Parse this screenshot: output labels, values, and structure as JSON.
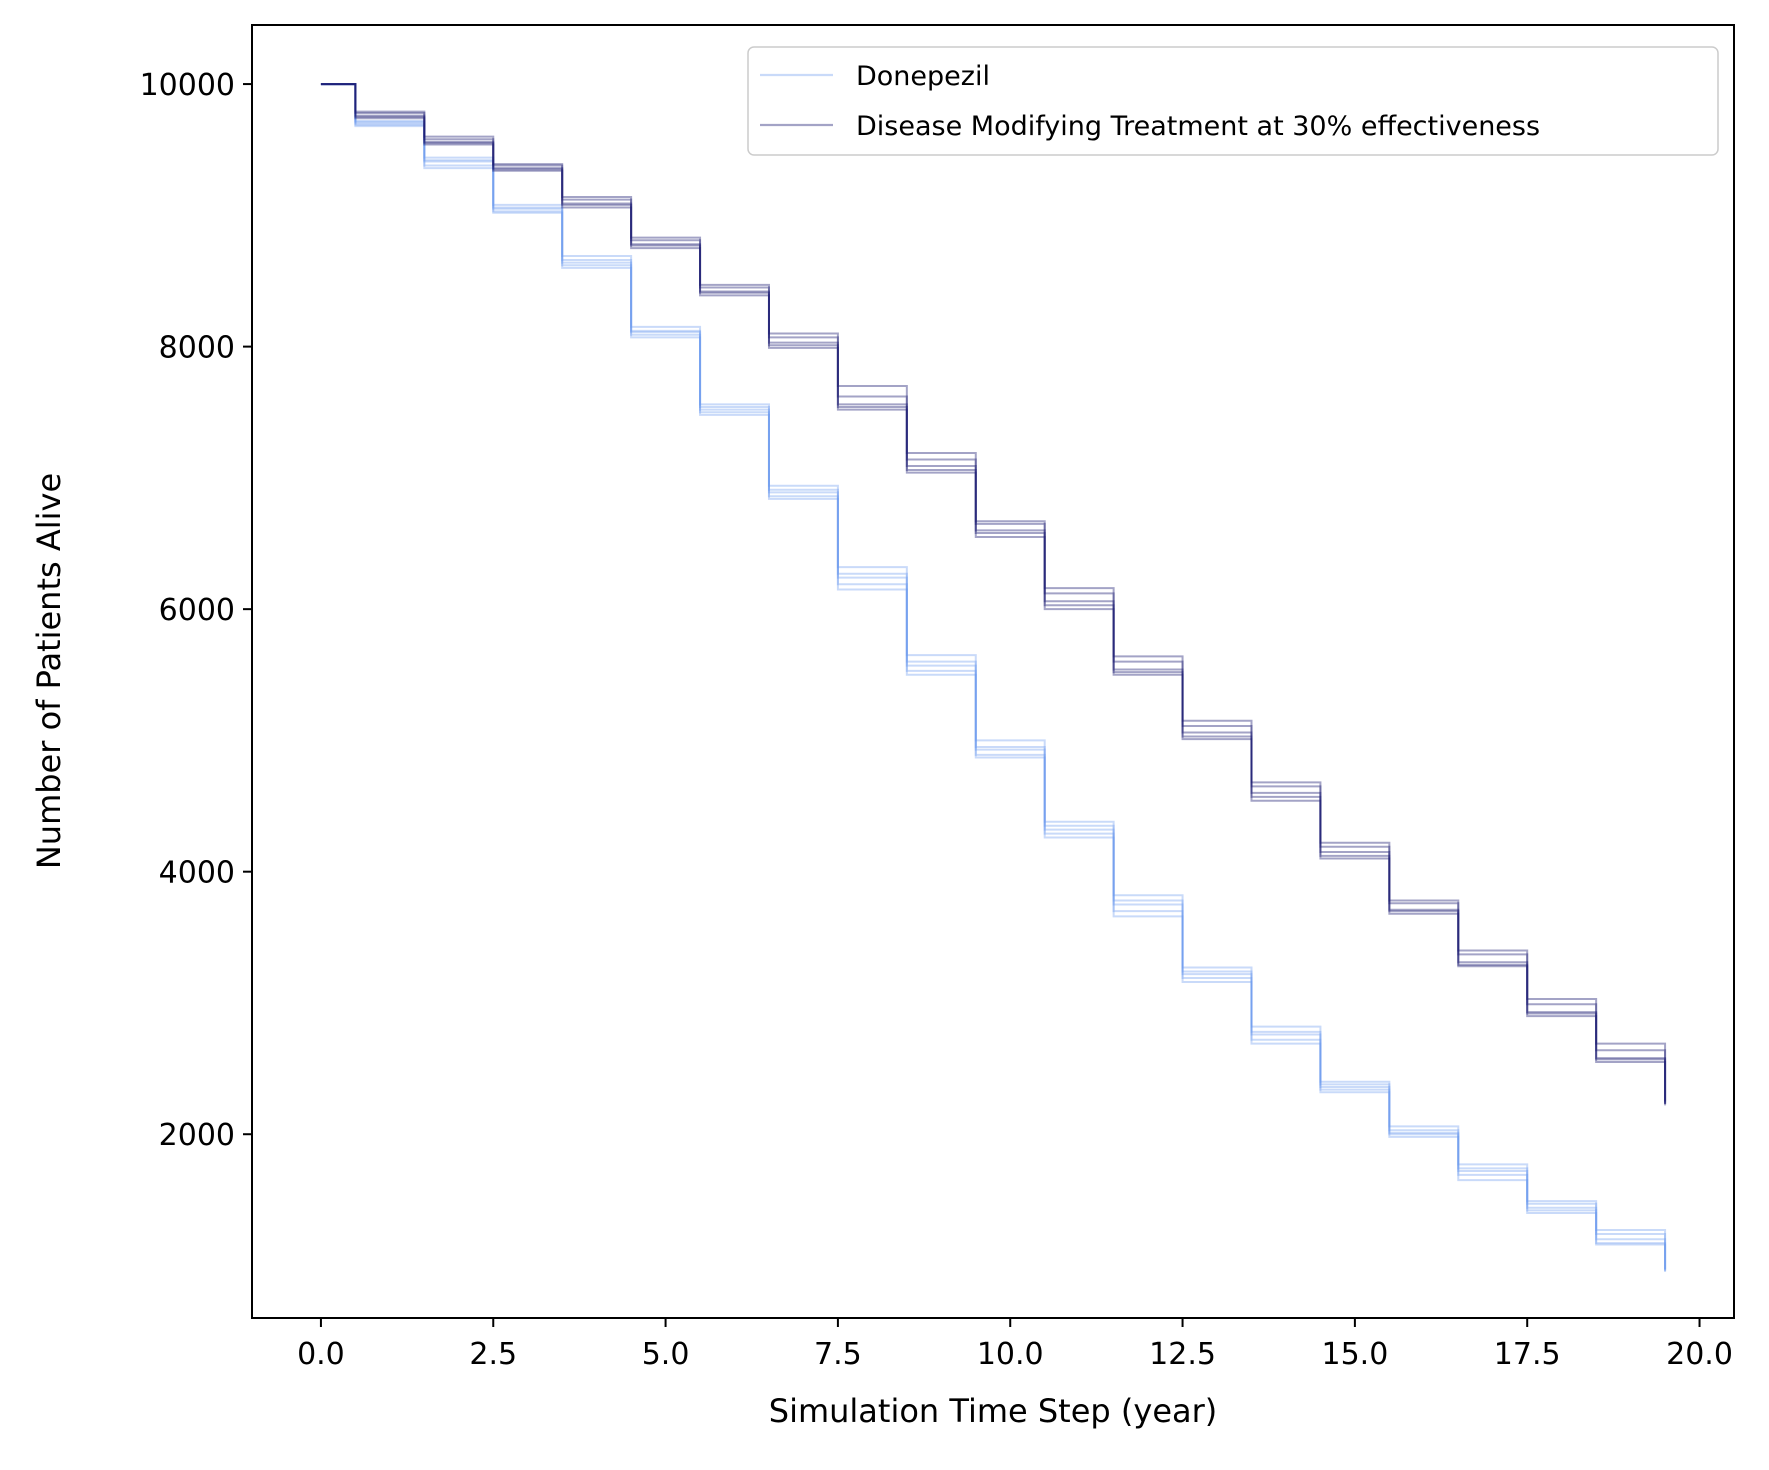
{
  "chart_data": {
    "type": "line",
    "title": "",
    "xlabel": "Simulation Time Step (year)",
    "ylabel": "Number of Patients Alive",
    "xlim": [
      -1.0,
      20.5
    ],
    "ylim": [
      600,
      10450
    ],
    "x_ticks": [
      0.0,
      2.5,
      5.0,
      7.5,
      10.0,
      12.5,
      15.0,
      17.5,
      20.0
    ],
    "x_tick_labels": [
      "0.0",
      "2.5",
      "5.0",
      "7.5",
      "10.0",
      "12.5",
      "15.0",
      "17.5",
      "20.0"
    ],
    "y_ticks": [
      2000,
      4000,
      6000,
      8000,
      10000
    ],
    "y_tick_labels": [
      "2000",
      "4000",
      "6000",
      "8000",
      "10000"
    ],
    "grid": false,
    "legend_position": "top-right",
    "step_where": "mid",
    "x": [
      0,
      1,
      2,
      3,
      4,
      5,
      6,
      7,
      8,
      9,
      10,
      11,
      12,
      13,
      14,
      15,
      16,
      17,
      18,
      19,
      19.5
    ],
    "series": [
      {
        "name": "Donepezil",
        "legend": true,
        "color": "#6495ED",
        "opacity": 0.35,
        "values": [
          10000,
          9710,
          9410,
          9060,
          8660,
          8120,
          7540,
          6910,
          6270,
          5600,
          4950,
          4350,
          3780,
          3240,
          2780,
          2380,
          2030,
          1740,
          1470,
          1240,
          960
        ]
      },
      {
        "name": "",
        "legend": false,
        "color": "#6495ED",
        "opacity": 0.35,
        "values": [
          10000,
          9690,
          9380,
          9030,
          8620,
          8090,
          7500,
          6860,
          6190,
          5530,
          4890,
          4290,
          3700,
          3190,
          2720,
          2340,
          2000,
          1690,
          1420,
          1170,
          970
        ]
      },
      {
        "name": "",
        "legend": false,
        "color": "#6495ED",
        "opacity": 0.35,
        "values": [
          10000,
          9720,
          9440,
          9080,
          8690,
          8150,
          7560,
          6940,
          6320,
          5650,
          5000,
          4380,
          3820,
          3270,
          2820,
          2400,
          2060,
          1770,
          1490,
          1270,
          950
        ]
      },
      {
        "name": "",
        "legend": false,
        "color": "#6495ED",
        "opacity": 0.35,
        "values": [
          10000,
          9680,
          9360,
          9020,
          8600,
          8070,
          7480,
          6840,
          6150,
          5500,
          4870,
          4260,
          3660,
          3160,
          2690,
          2320,
          1980,
          1650,
          1400,
          1160,
          960
        ]
      },
      {
        "name": "",
        "legend": false,
        "color": "#6495ED",
        "opacity": 0.35,
        "values": [
          10000,
          9700,
          9420,
          9050,
          8640,
          8110,
          7520,
          6890,
          6240,
          5570,
          4930,
          4320,
          3750,
          3220,
          2760,
          2360,
          2010,
          1720,
          1440,
          1200,
          970
        ]
      },
      {
        "name": "Disease Modifying Treatment at 30% effectiveness",
        "legend": true,
        "color": "#191970",
        "opacity": 0.4,
        "values": [
          10000,
          9760,
          9560,
          9360,
          9090,
          8780,
          8420,
          8030,
          7560,
          7090,
          6600,
          6060,
          5540,
          5060,
          4600,
          4150,
          3710,
          3310,
          2930,
          2580,
          2220
        ]
      },
      {
        "name": "",
        "legend": false,
        "color": "#191970",
        "opacity": 0.4,
        "values": [
          10000,
          9780,
          9580,
          9380,
          9120,
          8810,
          8450,
          8070,
          7620,
          7140,
          6650,
          6120,
          5600,
          5110,
          4650,
          4190,
          3760,
          3370,
          2990,
          2640,
          2250
        ]
      },
      {
        "name": "",
        "legend": false,
        "color": "#191970",
        "opacity": 0.4,
        "values": [
          10000,
          9740,
          9540,
          9340,
          9060,
          8750,
          8390,
          7990,
          7520,
          7040,
          6550,
          6000,
          5500,
          5010,
          4540,
          4100,
          3680,
          3280,
          2900,
          2550,
          2240
        ]
      },
      {
        "name": "",
        "legend": false,
        "color": "#191970",
        "opacity": 0.4,
        "values": [
          10000,
          9790,
          9600,
          9390,
          9140,
          8830,
          8470,
          8100,
          7700,
          7190,
          6670,
          6160,
          5640,
          5150,
          4680,
          4220,
          3780,
          3400,
          3030,
          2690,
          2230
        ]
      },
      {
        "name": "",
        "legend": false,
        "color": "#191970",
        "opacity": 0.4,
        "values": [
          10000,
          9750,
          9550,
          9350,
          9080,
          8770,
          8410,
          8010,
          7540,
          7060,
          6580,
          6030,
          5520,
          5030,
          4570,
          4120,
          3700,
          3290,
          2920,
          2570,
          2230
        ]
      }
    ]
  }
}
